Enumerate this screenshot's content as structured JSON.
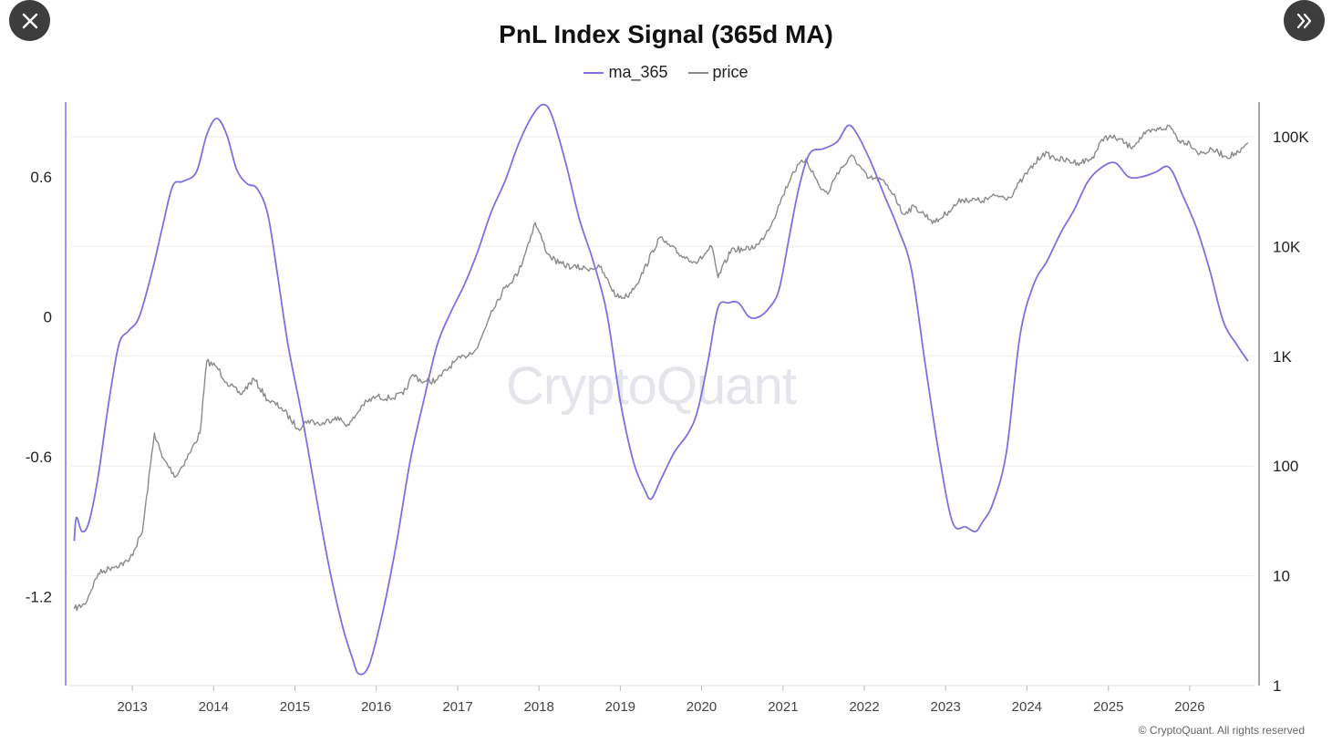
{
  "controls": {
    "close_icon": "close-icon",
    "expand_icon": "double-chevron-right-icon"
  },
  "watermark": "CryptoQuant",
  "copyright": "© CryptoQuant. All rights reserved",
  "colors": {
    "ma_365": "#7b72e0",
    "price": "#8a8a8a",
    "grid": "#eeeeee",
    "axis": "#7b72e0"
  },
  "chart_data": {
    "type": "line",
    "title": "PnL Index Signal (365d MA)",
    "legend_position": "top-center",
    "grid": true,
    "x_axis": {
      "type": "date",
      "range": [
        "2012-04-01",
        "2026-10-15"
      ],
      "ticks": [
        "2013",
        "2014",
        "2015",
        "2016",
        "2017",
        "2018",
        "2019",
        "2020",
        "2021",
        "2022",
        "2023",
        "2024",
        "2025",
        "2026"
      ]
    },
    "y_left": {
      "label": "",
      "ticks": [
        "0.6",
        "0",
        "-0.6",
        "-1.2"
      ],
      "tick_values": [
        0.6,
        0,
        -0.6,
        -1.2
      ],
      "range": [
        -1.58,
        0.92
      ]
    },
    "y_right": {
      "label": "",
      "scale": "log",
      "ticks": [
        "100K",
        "10K",
        "1K",
        "100",
        "10",
        "1"
      ],
      "tick_values": [
        100000,
        10000,
        1000,
        100,
        10,
        1
      ],
      "range": [
        1,
        100000
      ]
    },
    "series": [
      {
        "name": "ma_365",
        "axis": "left",
        "points": [
          [
            "2012-04-15",
            -0.96
          ],
          [
            "2012-04-25",
            -0.86
          ],
          [
            "2012-05-20",
            -0.92
          ],
          [
            "2012-06-20",
            -0.88
          ],
          [
            "2012-08-01",
            -0.68
          ],
          [
            "2012-09-15",
            -0.38
          ],
          [
            "2012-11-01",
            -0.12
          ],
          [
            "2012-12-15",
            -0.06
          ],
          [
            "2013-02-01",
            0.0
          ],
          [
            "2013-04-01",
            0.2
          ],
          [
            "2013-05-15",
            0.38
          ],
          [
            "2013-07-01",
            0.56
          ],
          [
            "2013-08-15",
            0.58
          ],
          [
            "2013-10-15",
            0.62
          ],
          [
            "2013-12-01",
            0.78
          ],
          [
            "2014-01-15",
            0.85
          ],
          [
            "2014-03-01",
            0.78
          ],
          [
            "2014-04-15",
            0.63
          ],
          [
            "2014-06-01",
            0.57
          ],
          [
            "2014-07-15",
            0.55
          ],
          [
            "2014-09-01",
            0.44
          ],
          [
            "2014-10-15",
            0.18
          ],
          [
            "2014-12-01",
            -0.12
          ],
          [
            "2015-02-01",
            -0.42
          ],
          [
            "2015-04-01",
            -0.74
          ],
          [
            "2015-06-01",
            -1.06
          ],
          [
            "2015-08-01",
            -1.32
          ],
          [
            "2015-09-15",
            -1.46
          ],
          [
            "2015-10-15",
            -1.53
          ],
          [
            "2015-12-01",
            -1.49
          ],
          [
            "2016-02-01",
            -1.26
          ],
          [
            "2016-04-01",
            -0.97
          ],
          [
            "2016-06-01",
            -0.62
          ],
          [
            "2016-08-01",
            -0.36
          ],
          [
            "2016-10-01",
            -0.12
          ],
          [
            "2016-12-01",
            0.02
          ],
          [
            "2017-02-01",
            0.14
          ],
          [
            "2017-04-01",
            0.28
          ],
          [
            "2017-06-01",
            0.45
          ],
          [
            "2017-08-01",
            0.58
          ],
          [
            "2017-10-01",
            0.74
          ],
          [
            "2017-12-01",
            0.86
          ],
          [
            "2018-01-20",
            0.91
          ],
          [
            "2018-03-01",
            0.86
          ],
          [
            "2018-05-01",
            0.66
          ],
          [
            "2018-07-01",
            0.42
          ],
          [
            "2018-09-01",
            0.24
          ],
          [
            "2018-11-01",
            0.02
          ],
          [
            "2019-01-01",
            -0.36
          ],
          [
            "2019-03-01",
            -0.62
          ],
          [
            "2019-04-20",
            -0.74
          ],
          [
            "2019-05-20",
            -0.78
          ],
          [
            "2019-07-01",
            -0.7
          ],
          [
            "2019-09-01",
            -0.58
          ],
          [
            "2019-11-01",
            -0.5
          ],
          [
            "2019-12-15",
            -0.4
          ],
          [
            "2020-02-01",
            -0.18
          ],
          [
            "2020-03-15",
            0.04
          ],
          [
            "2020-05-01",
            0.06
          ],
          [
            "2020-06-15",
            0.06
          ],
          [
            "2020-08-01",
            0.0
          ],
          [
            "2020-09-15",
            0.0
          ],
          [
            "2020-11-01",
            0.04
          ],
          [
            "2020-12-15",
            0.12
          ],
          [
            "2021-02-01",
            0.36
          ],
          [
            "2021-03-15",
            0.56
          ],
          [
            "2021-05-01",
            0.7
          ],
          [
            "2021-07-01",
            0.72
          ],
          [
            "2021-09-01",
            0.75
          ],
          [
            "2021-10-20",
            0.82
          ],
          [
            "2021-12-01",
            0.78
          ],
          [
            "2022-02-01",
            0.66
          ],
          [
            "2022-04-01",
            0.52
          ],
          [
            "2022-06-01",
            0.38
          ],
          [
            "2022-08-01",
            0.2
          ],
          [
            "2022-10-01",
            -0.2
          ],
          [
            "2022-12-01",
            -0.58
          ],
          [
            "2023-02-01",
            -0.88
          ],
          [
            "2023-04-01",
            -0.9
          ],
          [
            "2023-05-15",
            -0.92
          ],
          [
            "2023-06-15",
            -0.88
          ],
          [
            "2023-08-01",
            -0.8
          ],
          [
            "2023-10-01",
            -0.58
          ],
          [
            "2023-12-01",
            -0.08
          ],
          [
            "2024-02-01",
            0.14
          ],
          [
            "2024-04-01",
            0.24
          ],
          [
            "2024-06-01",
            0.36
          ],
          [
            "2024-08-01",
            0.46
          ],
          [
            "2024-10-01",
            0.58
          ],
          [
            "2024-12-01",
            0.64
          ],
          [
            "2025-02-01",
            0.66
          ],
          [
            "2025-04-01",
            0.6
          ],
          [
            "2025-06-01",
            0.6
          ],
          [
            "2025-08-01",
            0.62
          ],
          [
            "2025-10-01",
            0.64
          ],
          [
            "2025-12-01",
            0.52
          ],
          [
            "2026-02-01",
            0.38
          ],
          [
            "2026-04-01",
            0.2
          ],
          [
            "2026-06-01",
            -0.02
          ],
          [
            "2026-08-01",
            -0.12
          ],
          [
            "2026-09-20",
            -0.19
          ]
        ]
      },
      {
        "name": "price",
        "axis": "right",
        "points": [
          [
            "2012-04-15",
            5.0
          ],
          [
            "2012-06-01",
            5.5
          ],
          [
            "2012-08-01",
            10.5
          ],
          [
            "2012-10-01",
            12.0
          ],
          [
            "2012-12-15",
            13.5
          ],
          [
            "2013-02-15",
            25.0
          ],
          [
            "2013-04-10",
            200.0
          ],
          [
            "2013-05-15",
            120.0
          ],
          [
            "2013-07-15",
            80.0
          ],
          [
            "2013-09-15",
            130.0
          ],
          [
            "2013-11-01",
            200.0
          ],
          [
            "2013-12-01",
            900.0
          ],
          [
            "2014-01-15",
            800.0
          ],
          [
            "2014-03-01",
            580.0
          ],
          [
            "2014-05-01",
            450.0
          ],
          [
            "2014-07-01",
            620.0
          ],
          [
            "2014-09-01",
            400.0
          ],
          [
            "2014-11-01",
            340.0
          ],
          [
            "2015-01-15",
            220.0
          ],
          [
            "2015-03-01",
            260.0
          ],
          [
            "2015-05-01",
            240.0
          ],
          [
            "2015-07-01",
            280.0
          ],
          [
            "2015-09-01",
            235.0
          ],
          [
            "2015-11-01",
            360.0
          ],
          [
            "2016-01-01",
            430.0
          ],
          [
            "2016-03-01",
            415.0
          ],
          [
            "2016-05-01",
            450.0
          ],
          [
            "2016-06-15",
            680.0
          ],
          [
            "2016-08-01",
            580.0
          ],
          [
            "2016-10-01",
            610.0
          ],
          [
            "2016-12-15",
            880.0
          ],
          [
            "2017-02-01",
            1000.0
          ],
          [
            "2017-04-01",
            1200.0
          ],
          [
            "2017-06-01",
            2600.0
          ],
          [
            "2017-08-01",
            4200.0
          ],
          [
            "2017-10-01",
            5800.0
          ],
          [
            "2017-12-15",
            16500.0
          ],
          [
            "2018-02-10",
            8500.0
          ],
          [
            "2018-04-01",
            7000.0
          ],
          [
            "2018-06-01",
            6500.0
          ],
          [
            "2018-08-01",
            6300.0
          ],
          [
            "2018-10-01",
            6500.0
          ],
          [
            "2018-12-15",
            3500.0
          ],
          [
            "2019-02-01",
            3500.0
          ],
          [
            "2019-04-01",
            5200.0
          ],
          [
            "2019-06-25",
            12000.0
          ],
          [
            "2019-08-01",
            10500.0
          ],
          [
            "2019-10-01",
            8300.0
          ],
          [
            "2019-12-15",
            7200.0
          ],
          [
            "2020-02-15",
            10000.0
          ],
          [
            "2020-03-15",
            5200.0
          ],
          [
            "2020-05-15",
            9500.0
          ],
          [
            "2020-07-15",
            9300.0
          ],
          [
            "2020-09-15",
            10500.0
          ],
          [
            "2020-11-15",
            17000.0
          ],
          [
            "2020-12-31",
            29000.0
          ],
          [
            "2021-02-15",
            48000.0
          ],
          [
            "2021-04-14",
            63000.0
          ],
          [
            "2021-06-15",
            35000.0
          ],
          [
            "2021-07-20",
            30000.0
          ],
          [
            "2021-09-01",
            47000.0
          ],
          [
            "2021-11-10",
            67000.0
          ],
          [
            "2022-01-15",
            42000.0
          ],
          [
            "2022-03-15",
            41000.0
          ],
          [
            "2022-05-15",
            30000.0
          ],
          [
            "2022-06-20",
            20000.0
          ],
          [
            "2022-08-15",
            23000.0
          ],
          [
            "2022-11-15",
            16500.0
          ],
          [
            "2023-01-15",
            21000.0
          ],
          [
            "2023-03-15",
            27000.0
          ],
          [
            "2023-06-15",
            26000.0
          ],
          [
            "2023-08-15",
            29000.0
          ],
          [
            "2023-10-15",
            28000.0
          ],
          [
            "2023-12-15",
            42000.0
          ],
          [
            "2024-03-14",
            71000.0
          ],
          [
            "2024-05-15",
            63000.0
          ],
          [
            "2024-08-15",
            58000.0
          ],
          [
            "2024-10-15",
            62000.0
          ],
          [
            "2024-12-15",
            100000.0
          ],
          [
            "2025-02-15",
            96000.0
          ],
          [
            "2025-04-10",
            80000.0
          ],
          [
            "2025-06-15",
            106000.0
          ],
          [
            "2025-08-15",
            117000.0
          ],
          [
            "2025-10-06",
            124000.0
          ],
          [
            "2025-11-15",
            92000.0
          ],
          [
            "2026-01-01",
            88000.0
          ],
          [
            "2026-02-15",
            70000.0
          ],
          [
            "2026-04-15",
            76000.0
          ],
          [
            "2026-06-15",
            66000.0
          ],
          [
            "2026-08-15",
            72000.0
          ],
          [
            "2026-09-20",
            88000.0
          ]
        ]
      }
    ]
  }
}
